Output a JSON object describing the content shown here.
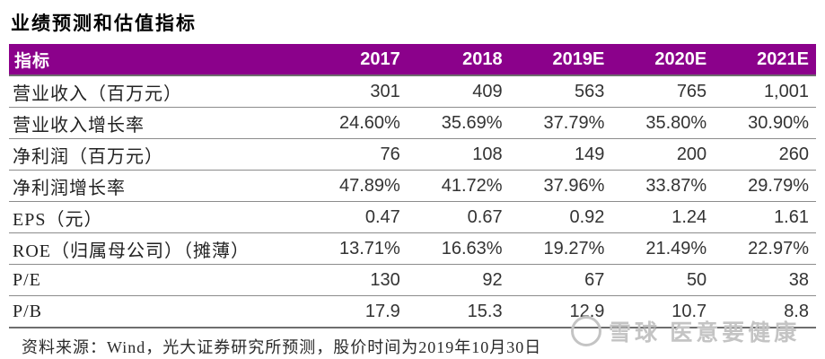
{
  "title": "业绩预测和估值指标",
  "table": {
    "header": [
      "指标",
      "2017",
      "2018",
      "2019E",
      "2020E",
      "2021E"
    ],
    "rows": [
      {
        "label": "营业收入（百万元）",
        "values": [
          "301",
          "409",
          "563",
          "765",
          "1,001"
        ]
      },
      {
        "label": "营业收入增长率",
        "values": [
          "24.60%",
          "35.69%",
          "37.79%",
          "35.80%",
          "30.90%"
        ]
      },
      {
        "label": "净利润（百万元）",
        "values": [
          "76",
          "108",
          "149",
          "200",
          "260"
        ]
      },
      {
        "label": "净利润增长率",
        "values": [
          "47.89%",
          "41.72%",
          "37.96%",
          "33.87%",
          "29.79%"
        ]
      },
      {
        "label": "EPS（元）",
        "values": [
          "0.47",
          "0.67",
          "0.92",
          "1.24",
          "1.61"
        ]
      },
      {
        "label": "ROE（归属母公司）（摊薄）",
        "values": [
          "13.71%",
          "16.63%",
          "19.27%",
          "21.49%",
          "22.97%"
        ]
      },
      {
        "label": "P/E",
        "values": [
          "130",
          "92",
          "67",
          "50",
          "38"
        ]
      },
      {
        "label": "P/B",
        "values": [
          "17.9",
          "15.3",
          "12.9",
          "10.7",
          "8.8"
        ]
      }
    ]
  },
  "footer": {
    "source": "资料来源：Wind，光大证券研究所预测，股价时间为2019年10月30日"
  },
  "watermark": {
    "text": "雪球 医意要健康",
    "icon": "snowball-circle"
  },
  "colors": {
    "header_bg": "#8B018B",
    "header_text": "#FFFFFF",
    "row_separator": "#8C8C8C",
    "watermark_gray": "#C4C4C4"
  }
}
